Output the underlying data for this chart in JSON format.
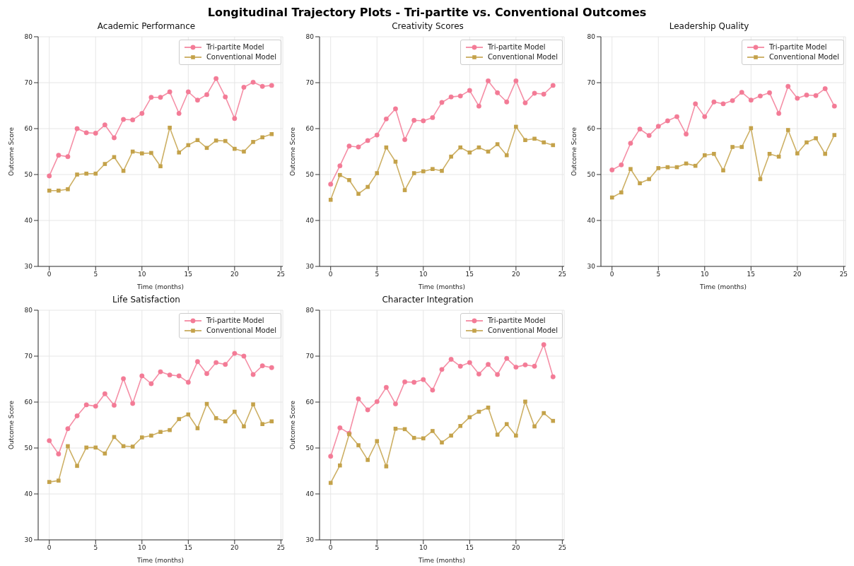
{
  "chart_data": [
    {
      "type": "line",
      "annotations": [
        "Longitudinal Trajectory Plots - Tri-partite vs. Conventional Outcomes"
      ],
      "title": "Academic Performance",
      "xlabel": "Time (months)",
      "ylabel": "Outcome Score",
      "x": [
        0,
        1,
        2,
        3,
        4,
        5,
        6,
        7,
        8,
        9,
        10,
        11,
        12,
        13,
        14,
        15,
        16,
        17,
        18,
        19,
        20,
        21,
        22,
        23,
        24
      ],
      "xlim": [
        -1.2,
        25.2
      ],
      "xticks": [
        0,
        5,
        10,
        15,
        20,
        25
      ],
      "ylim": [
        30,
        80
      ],
      "yticks": [
        30,
        40,
        50,
        60,
        70,
        80
      ],
      "grid": true,
      "legend": "top right",
      "series": [
        {
          "name": "Tri-partite Model",
          "color": "#f37b96",
          "marker": "circle",
          "values": [
            49.7,
            54.2,
            53.9,
            60.0,
            59.1,
            59.0,
            60.8,
            58.0,
            62.0,
            61.9,
            63.3,
            66.8,
            66.8,
            68.0,
            63.3,
            68.0,
            66.2,
            67.4,
            70.9,
            66.9,
            62.2,
            69.0,
            70.1,
            69.2,
            69.4
          ]
        },
        {
          "name": "Conventional Model",
          "color": "#c4a24a",
          "marker": "square",
          "values": [
            46.5,
            46.5,
            46.8,
            50.0,
            50.2,
            50.2,
            52.3,
            53.8,
            50.8,
            55.0,
            54.6,
            54.7,
            51.8,
            60.2,
            54.8,
            56.4,
            57.5,
            55.8,
            57.4,
            57.3,
            55.6,
            55.0,
            57.1,
            58.1,
            58.8
          ]
        }
      ]
    },
    {
      "type": "line",
      "title": "Creativity Scores",
      "xlabel": "Time (months)",
      "ylabel": "Outcome Score",
      "x": [
        0,
        1,
        2,
        3,
        4,
        5,
        6,
        7,
        8,
        9,
        10,
        11,
        12,
        13,
        14,
        15,
        16,
        17,
        18,
        19,
        20,
        21,
        22,
        23,
        24
      ],
      "xlim": [
        -1.2,
        25.2
      ],
      "xticks": [
        0,
        5,
        10,
        15,
        20,
        25
      ],
      "ylim": [
        30,
        80
      ],
      "yticks": [
        30,
        40,
        50,
        60,
        70,
        80
      ],
      "grid": true,
      "legend": "top right",
      "series": [
        {
          "name": "Tri-partite Model",
          "color": "#f37b96",
          "marker": "circle",
          "values": [
            47.9,
            51.9,
            56.2,
            56.0,
            57.4,
            58.6,
            62.1,
            64.3,
            57.6,
            61.8,
            61.7,
            62.4,
            65.7,
            66.9,
            67.1,
            68.3,
            64.9,
            70.4,
            67.8,
            65.8,
            70.4,
            65.6,
            67.7,
            67.5,
            69.4
          ]
        },
        {
          "name": "Conventional Model",
          "color": "#c4a24a",
          "marker": "square",
          "values": [
            44.5,
            49.9,
            48.8,
            45.8,
            47.3,
            50.3,
            55.9,
            52.8,
            46.6,
            50.3,
            50.7,
            51.2,
            50.8,
            53.9,
            55.9,
            54.8,
            55.9,
            55.0,
            56.6,
            54.2,
            60.4,
            57.5,
            57.8,
            57.0,
            56.4
          ]
        }
      ]
    },
    {
      "type": "line",
      "title": "Leadership Quality",
      "xlabel": "Time (months)",
      "ylabel": "Outcome Score",
      "x": [
        0,
        1,
        2,
        3,
        4,
        5,
        6,
        7,
        8,
        9,
        10,
        11,
        12,
        13,
        14,
        15,
        16,
        17,
        18,
        19,
        20,
        21,
        22,
        23,
        24
      ],
      "xlim": [
        -1.2,
        25.2
      ],
      "xticks": [
        0,
        5,
        10,
        15,
        20,
        25
      ],
      "ylim": [
        30,
        80
      ],
      "yticks": [
        30,
        40,
        50,
        60,
        70,
        80
      ],
      "grid": true,
      "legend": "top right",
      "series": [
        {
          "name": "Tri-partite Model",
          "color": "#f37b96",
          "marker": "circle",
          "values": [
            51.0,
            52.1,
            56.8,
            59.9,
            58.5,
            60.5,
            61.7,
            62.6,
            58.8,
            65.4,
            62.6,
            65.8,
            65.4,
            66.1,
            67.9,
            66.2,
            67.1,
            67.8,
            63.3,
            69.2,
            66.6,
            67.3,
            67.2,
            68.7,
            64.9
          ]
        },
        {
          "name": "Conventional Model",
          "color": "#c4a24a",
          "marker": "square",
          "values": [
            45.0,
            46.1,
            51.2,
            48.1,
            49.0,
            51.4,
            51.6,
            51.6,
            52.4,
            51.9,
            54.2,
            54.5,
            50.9,
            56.0,
            56.0,
            60.1,
            49.0,
            54.5,
            53.9,
            59.7,
            54.6,
            57.0,
            57.9,
            54.5,
            58.6
          ]
        }
      ]
    },
    {
      "type": "line",
      "title": "Life Satisfaction",
      "xlabel": "Time (months)",
      "ylabel": "Outcome Score",
      "x": [
        0,
        1,
        2,
        3,
        4,
        5,
        6,
        7,
        8,
        9,
        10,
        11,
        12,
        13,
        14,
        15,
        16,
        17,
        18,
        19,
        20,
        21,
        22,
        23,
        24
      ],
      "xlim": [
        -1.2,
        25.2
      ],
      "xticks": [
        0,
        5,
        10,
        15,
        20,
        25
      ],
      "ylim": [
        30,
        80
      ],
      "yticks": [
        30,
        40,
        50,
        60,
        70,
        80
      ],
      "grid": true,
      "legend": "top right",
      "series": [
        {
          "name": "Tri-partite Model",
          "color": "#f37b96",
          "marker": "circle",
          "values": [
            51.6,
            48.7,
            54.2,
            57.0,
            59.4,
            59.1,
            61.8,
            59.3,
            65.1,
            59.7,
            65.7,
            64.0,
            66.6,
            65.9,
            65.7,
            64.3,
            68.8,
            66.2,
            68.6,
            68.2,
            70.6,
            70.0,
            66.0,
            67.9,
            67.5
          ]
        },
        {
          "name": "Conventional Model",
          "color": "#c4a24a",
          "marker": "square",
          "values": [
            42.6,
            42.9,
            50.4,
            46.1,
            50.1,
            50.1,
            48.8,
            52.4,
            50.4,
            50.3,
            52.3,
            52.7,
            53.5,
            53.9,
            56.3,
            57.3,
            54.3,
            59.6,
            56.5,
            55.8,
            57.9,
            54.7,
            59.5,
            55.2,
            55.8
          ]
        }
      ]
    },
    {
      "type": "line",
      "title": "Character Integration",
      "xlabel": "Time (months)",
      "ylabel": "Outcome Score",
      "x": [
        0,
        1,
        2,
        3,
        4,
        5,
        6,
        7,
        8,
        9,
        10,
        11,
        12,
        13,
        14,
        15,
        16,
        17,
        18,
        19,
        20,
        21,
        22,
        23,
        24
      ],
      "xlim": [
        -1.2,
        25.2
      ],
      "xticks": [
        0,
        5,
        10,
        15,
        20,
        25
      ],
      "ylim": [
        30,
        80
      ],
      "yticks": [
        30,
        40,
        50,
        60,
        70,
        80
      ],
      "grid": true,
      "legend": "top right",
      "series": [
        {
          "name": "Tri-partite Model",
          "color": "#f37b96",
          "marker": "circle",
          "values": [
            48.2,
            54.4,
            53.2,
            60.7,
            58.3,
            60.1,
            63.2,
            59.6,
            64.4,
            64.3,
            64.9,
            62.6,
            67.1,
            69.3,
            67.8,
            68.6,
            66.1,
            68.2,
            66.0,
            69.5,
            67.6,
            68.1,
            67.8,
            72.5,
            65.5
          ]
        },
        {
          "name": "Conventional Model",
          "color": "#c4a24a",
          "marker": "square",
          "values": [
            42.4,
            46.2,
            53.0,
            50.6,
            47.4,
            51.5,
            46.0,
            54.2,
            54.1,
            52.2,
            52.1,
            53.7,
            51.2,
            52.7,
            54.8,
            56.7,
            57.9,
            58.8,
            52.9,
            55.2,
            52.7,
            60.1,
            54.7,
            57.6,
            55.9
          ]
        }
      ]
    }
  ]
}
